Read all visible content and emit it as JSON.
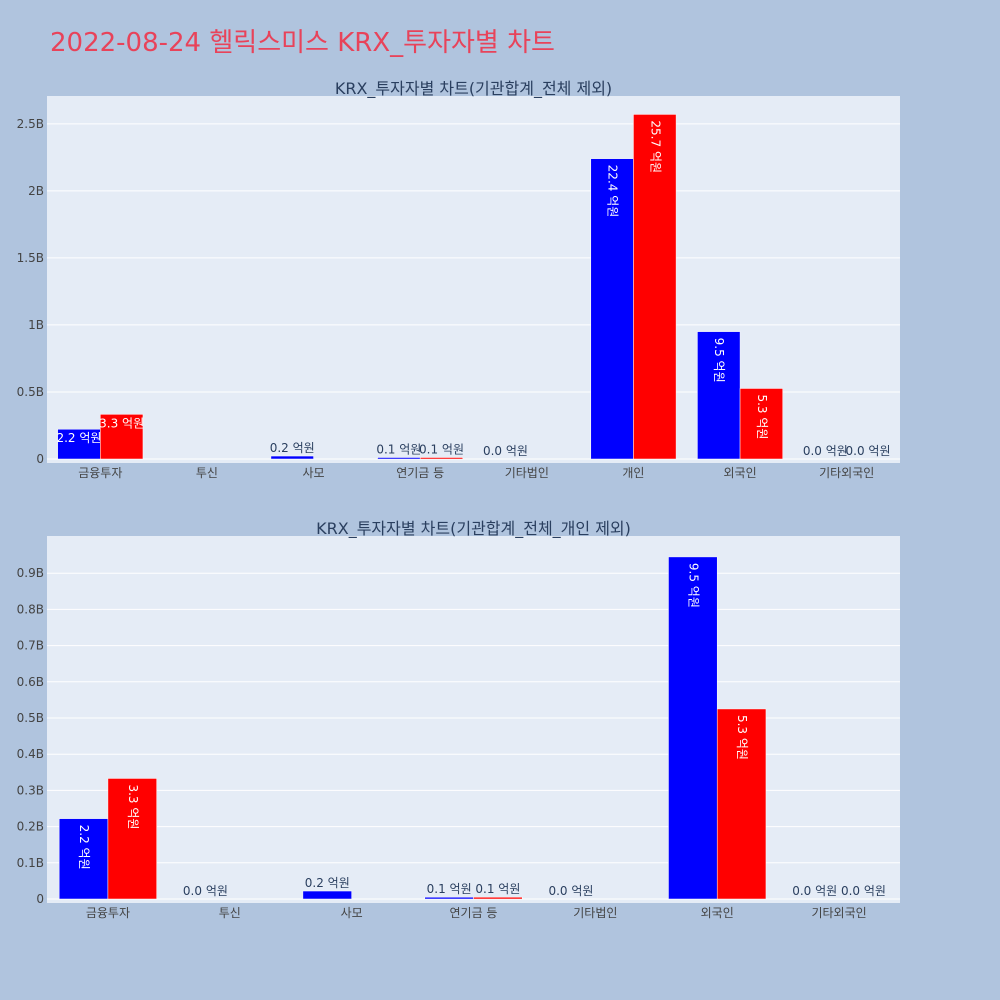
{
  "page": {
    "title": "2022-08-24 헬릭스미스 KRX_투자자별 차트",
    "background": "#b0c4de",
    "title_color": "#e8435a"
  },
  "chart_data": [
    {
      "type": "bar",
      "title": "KRX_투자자별 차트(기관합계_전체 제외)",
      "categories": [
        "금융투자",
        "투신",
        "사모",
        "연기금 등",
        "기타법인",
        "개인",
        "외국인",
        "기타외국인"
      ],
      "series": [
        {
          "color": "#0000ff",
          "values": [
            222000000,
            0,
            22000000,
            5000000,
            0,
            2240000000,
            950000000,
            0
          ],
          "labels": [
            "2.2 억원",
            "",
            "0.2 억원",
            "0.1 억원",
            "0.0 억원",
            "22.4 억원",
            "9.5 억원",
            "0.0 억원"
          ]
        },
        {
          "color": "#ff0000",
          "values": [
            333000000,
            0,
            0,
            5000000,
            0,
            2570000000,
            526000000,
            0
          ],
          "labels": [
            "3.3 억원",
            "",
            "",
            "0.1 억원",
            "",
            "25.7 억원",
            "5.3 억원",
            "0.0 억원"
          ]
        }
      ],
      "ylim": [
        0,
        2700000000
      ],
      "yticks": [
        0,
        500000000,
        1000000000,
        1500000000,
        2000000000,
        2500000000
      ],
      "ytick_labels": [
        "0",
        "0.5B",
        "1B",
        "1.5B",
        "2B",
        "2.5B"
      ],
      "plot_bg": "#e5ecf6",
      "grid": true,
      "legend": "none"
    },
    {
      "type": "bar",
      "title": "KRX_투자자별 차트(기관합계_전체_개인 제외)",
      "categories": [
        "금융투자",
        "투신",
        "사모",
        "연기금 등",
        "기타법인",
        "외국인",
        "기타외국인"
      ],
      "series": [
        {
          "color": "#0000ff",
          "values": [
            222000000,
            0,
            22000000,
            5000000,
            0,
            945000000,
            0
          ],
          "labels": [
            "2.2 억원",
            "0.0 억원",
            "0.2 억원",
            "0.1 억원",
            "0.0 억원",
            "9.5 억원",
            "0.0 억원"
          ]
        },
        {
          "color": "#ff0000",
          "values": [
            333000000,
            0,
            0,
            5000000,
            0,
            525000000,
            0
          ],
          "labels": [
            "3.3 억원",
            "",
            "",
            "0.1 억원",
            "",
            "5.3 억원",
            "0.0 억원"
          ]
        }
      ],
      "ylim": [
        0,
        1000000000
      ],
      "yticks": [
        0,
        100000000,
        200000000,
        300000000,
        400000000,
        500000000,
        600000000,
        700000000,
        800000000,
        900000000
      ],
      "ytick_labels": [
        "0",
        "0.1B",
        "0.2B",
        "0.3B",
        "0.4B",
        "0.5B",
        "0.6B",
        "0.7B",
        "0.8B",
        "0.9B"
      ],
      "plot_bg": "#e5ecf6",
      "grid": true,
      "legend": "none"
    }
  ]
}
